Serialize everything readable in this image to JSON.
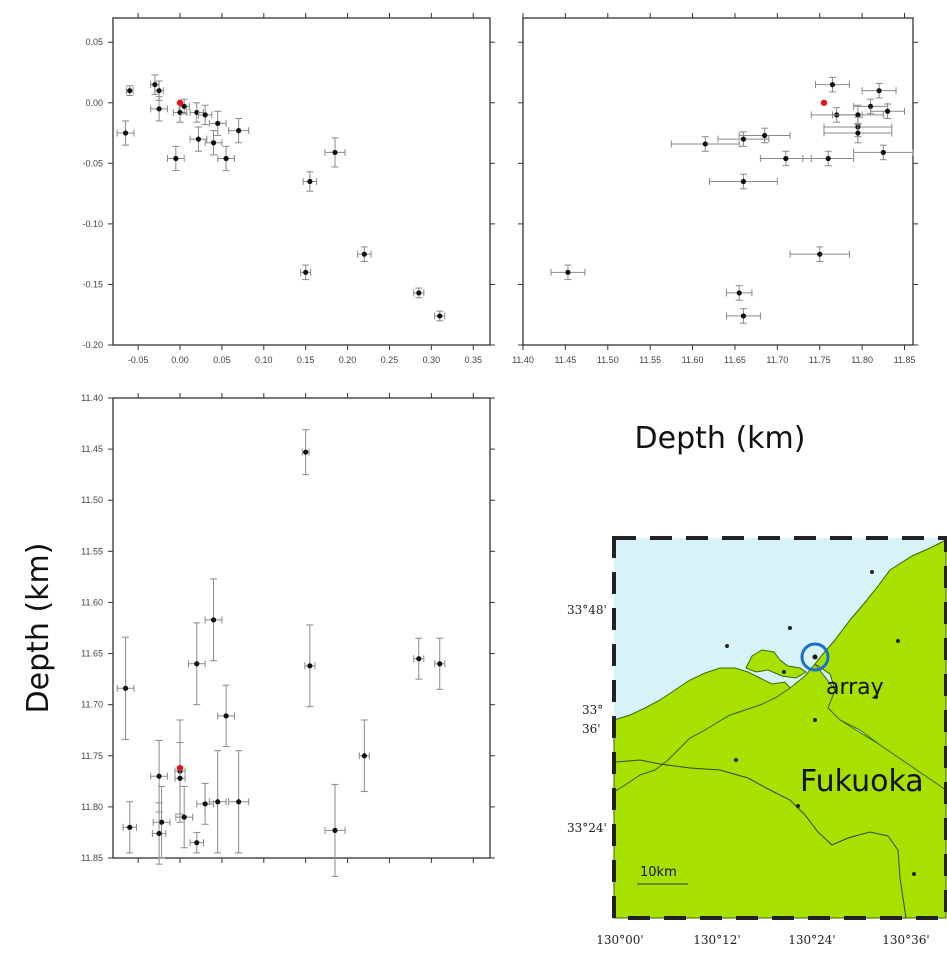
{
  "axis_titles": {
    "right_x": "Depth (km)",
    "left_y": "Depth (km)"
  },
  "map": {
    "lat_labels": [
      "33°48'",
      "33°",
      "36'",
      "33°24'"
    ],
    "lon_labels": [
      "130°00'",
      "130°12'",
      "130°24'",
      "130°36'"
    ],
    "array_label": "array",
    "city_label": "Fukuoka",
    "scale_label": "10km",
    "colors": {
      "sea": "#d7f2f8",
      "land": "#a8e000",
      "circle": "#1a6fd0"
    }
  },
  "chart_data": [
    {
      "type": "scatter",
      "panel": "top-left",
      "xlim": [
        -0.08,
        0.37
      ],
      "ylim": [
        -0.2,
        0.07
      ],
      "xticks": [
        "-0.05",
        "0.00",
        "0.05",
        "0.10",
        "0.15",
        "0.20",
        "0.25",
        "0.30",
        "0.35"
      ],
      "yticks": [
        "0.05",
        "0.00",
        "-0.05",
        "-0.10",
        "-0.15",
        "-0.20"
      ],
      "points": [
        {
          "x": -0.06,
          "y": 0.01,
          "ex": 0.004,
          "ey": 0.004
        },
        {
          "x": -0.065,
          "y": -0.025,
          "ex": 0.01,
          "ey": 0.01
        },
        {
          "x": -0.03,
          "y": 0.015,
          "ex": 0.005,
          "ey": 0.008
        },
        {
          "x": -0.025,
          "y": 0.01,
          "ex": 0.005,
          "ey": 0.008
        },
        {
          "x": -0.025,
          "y": -0.005,
          "ex": 0.01,
          "ey": 0.01
        },
        {
          "x": 0.0,
          "y": -0.008,
          "ex": 0.008,
          "ey": 0.008
        },
        {
          "x": 0.005,
          "y": -0.003,
          "ex": 0.006,
          "ey": 0.006
        },
        {
          "x": 0.02,
          "y": -0.008,
          "ex": 0.008,
          "ey": 0.008
        },
        {
          "x": 0.03,
          "y": -0.01,
          "ex": 0.008,
          "ey": 0.008
        },
        {
          "x": 0.045,
          "y": -0.017,
          "ex": 0.01,
          "ey": 0.01
        },
        {
          "x": 0.022,
          "y": -0.03,
          "ex": 0.01,
          "ey": 0.01
        },
        {
          "x": 0.04,
          "y": -0.033,
          "ex": 0.01,
          "ey": 0.01
        },
        {
          "x": 0.07,
          "y": -0.023,
          "ex": 0.012,
          "ey": 0.01
        },
        {
          "x": -0.005,
          "y": -0.046,
          "ex": 0.01,
          "ey": 0.01
        },
        {
          "x": 0.055,
          "y": -0.046,
          "ex": 0.01,
          "ey": 0.01
        },
        {
          "x": 0.185,
          "y": -0.041,
          "ex": 0.012,
          "ey": 0.012
        },
        {
          "x": 0.155,
          "y": -0.065,
          "ex": 0.008,
          "ey": 0.008
        },
        {
          "x": 0.15,
          "y": -0.14,
          "ex": 0.006,
          "ey": 0.006
        },
        {
          "x": 0.22,
          "y": -0.125,
          "ex": 0.008,
          "ey": 0.006
        },
        {
          "x": 0.285,
          "y": -0.157,
          "ex": 0.006,
          "ey": 0.004
        },
        {
          "x": 0.31,
          "y": -0.176,
          "ex": 0.006,
          "ey": 0.004
        },
        {
          "x": 0.0,
          "y": 0.0,
          "ex": 0,
          "ey": 0,
          "highlight": true
        }
      ]
    },
    {
      "type": "scatter",
      "panel": "top-right",
      "xlim": [
        11.4,
        11.86
      ],
      "ylim": [
        -0.2,
        0.07
      ],
      "xticks": [
        "11.40",
        "11.45",
        "11.50",
        "11.55",
        "11.60",
        "11.65",
        "11.70",
        "11.75",
        "11.80",
        "11.85"
      ],
      "points": [
        {
          "x": 11.765,
          "y": 0.015,
          "ex": 0.02,
          "ey": 0.006
        },
        {
          "x": 11.82,
          "y": 0.01,
          "ex": 0.02,
          "ey": 0.006
        },
        {
          "x": 11.81,
          "y": -0.003,
          "ex": 0.02,
          "ey": 0.006
        },
        {
          "x": 11.83,
          "y": -0.007,
          "ex": 0.02,
          "ey": 0.006
        },
        {
          "x": 11.77,
          "y": -0.01,
          "ex": 0.03,
          "ey": 0.006
        },
        {
          "x": 11.795,
          "y": -0.01,
          "ex": 0.03,
          "ey": 0.008
        },
        {
          "x": 11.795,
          "y": -0.02,
          "ex": 0.04,
          "ey": 0.008
        },
        {
          "x": 11.795,
          "y": -0.025,
          "ex": 0.04,
          "ey": 0.008
        },
        {
          "x": 11.685,
          "y": -0.027,
          "ex": 0.03,
          "ey": 0.006
        },
        {
          "x": 11.66,
          "y": -0.03,
          "ex": 0.03,
          "ey": 0.006
        },
        {
          "x": 11.615,
          "y": -0.034,
          "ex": 0.04,
          "ey": 0.006
        },
        {
          "x": 11.825,
          "y": -0.041,
          "ex": 0.035,
          "ey": 0.006
        },
        {
          "x": 11.71,
          "y": -0.046,
          "ex": 0.03,
          "ey": 0.006
        },
        {
          "x": 11.76,
          "y": -0.046,
          "ex": 0.03,
          "ey": 0.006
        },
        {
          "x": 11.66,
          "y": -0.065,
          "ex": 0.04,
          "ey": 0.006
        },
        {
          "x": 11.75,
          "y": -0.125,
          "ex": 0.035,
          "ey": 0.006
        },
        {
          "x": 11.453,
          "y": -0.14,
          "ex": 0.02,
          "ey": 0.006
        },
        {
          "x": 11.655,
          "y": -0.157,
          "ex": 0.015,
          "ey": 0.006
        },
        {
          "x": 11.66,
          "y": -0.176,
          "ex": 0.02,
          "ey": 0.006
        },
        {
          "x": 11.755,
          "y": 0.0,
          "ex": 0,
          "ey": 0,
          "highlight": true
        }
      ]
    },
    {
      "type": "scatter",
      "panel": "bottom-left",
      "xlim": [
        -0.08,
        0.37
      ],
      "ylim": [
        11.85,
        11.4
      ],
      "yticks": [
        "11.40",
        "11.45",
        "11.50",
        "11.55",
        "11.60",
        "11.65",
        "11.70",
        "11.75",
        "11.80",
        "11.85"
      ],
      "points": [
        {
          "x": 0.15,
          "y": 11.453,
          "ex": 0.004,
          "ey": 0.022
        },
        {
          "x": 0.04,
          "y": 11.617,
          "ex": 0.01,
          "ey": 0.04
        },
        {
          "x": 0.02,
          "y": 11.66,
          "ex": 0.01,
          "ey": 0.04
        },
        {
          "x": 0.155,
          "y": 11.662,
          "ex": 0.006,
          "ey": 0.04
        },
        {
          "x": 0.285,
          "y": 11.655,
          "ex": 0.006,
          "ey": 0.02
        },
        {
          "x": 0.31,
          "y": 11.66,
          "ex": 0.006,
          "ey": 0.025
        },
        {
          "x": -0.065,
          "y": 11.684,
          "ex": 0.01,
          "ey": 0.05
        },
        {
          "x": 0.055,
          "y": 11.711,
          "ex": 0.01,
          "ey": 0.03
        },
        {
          "x": 0.22,
          "y": 11.75,
          "ex": 0.006,
          "ey": 0.035
        },
        {
          "x": 0.0,
          "y": 11.765,
          "ex": 0.006,
          "ey": 0.05
        },
        {
          "x": -0.025,
          "y": 11.77,
          "ex": 0.01,
          "ey": 0.035
        },
        {
          "x": 0.0,
          "y": 11.772,
          "ex": 0.006,
          "ey": 0.035
        },
        {
          "x": 0.03,
          "y": 11.797,
          "ex": 0.01,
          "ey": 0.02
        },
        {
          "x": 0.045,
          "y": 11.795,
          "ex": 0.01,
          "ey": 0.05
        },
        {
          "x": 0.07,
          "y": 11.795,
          "ex": 0.012,
          "ey": 0.05
        },
        {
          "x": 0.005,
          "y": 11.81,
          "ex": 0.01,
          "ey": 0.03
        },
        {
          "x": -0.022,
          "y": 11.815,
          "ex": 0.01,
          "ey": 0.035
        },
        {
          "x": -0.06,
          "y": 11.82,
          "ex": 0.008,
          "ey": 0.025
        },
        {
          "x": 0.185,
          "y": 11.823,
          "ex": 0.012,
          "ey": 0.045
        },
        {
          "x": -0.025,
          "y": 11.826,
          "ex": 0.008,
          "ey": 0.03
        },
        {
          "x": 0.02,
          "y": 11.835,
          "ex": 0.008,
          "ey": 0.01
        },
        {
          "x": 0.0,
          "y": 11.762,
          "ex": 0,
          "ey": 0,
          "highlight": true
        }
      ]
    }
  ]
}
